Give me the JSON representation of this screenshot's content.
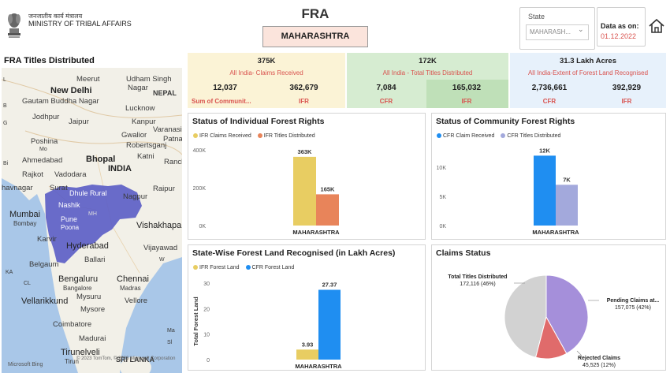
{
  "header": {
    "ministry_hindi": "जनजातीय कार्य मंत्रालय",
    "ministry_english": "MINISTRY OF TRIBAL AFFAIRS",
    "title": "FRA",
    "selected_state_button": "MAHARASHTRA",
    "state_filter_label": "State",
    "state_filter_value": "MAHARASH...",
    "data_as_on_label": "Data as on:",
    "data_as_on_value": "01.12.2022"
  },
  "map": {
    "title": "FRA Titles Distributed",
    "attribution": "Microsoft Bing",
    "copyright": "© 2023 TomTom, © 2023 Microsoft Corporation",
    "labels": {
      "meerut": "Meerut",
      "udhamsingh": "Udham Singh",
      "nagar": "Nagar",
      "newdelhi": "New Delhi",
      "nepal": "NEPAL",
      "gautam": "Gautam Buddha Nagar",
      "lucknow": "Lucknow",
      "jodhpur": "Jodhpur",
      "jaipur": "Jaipur",
      "kanpur": "Kanpur",
      "varanasi": "Varanasi",
      "poshina": "Poshina",
      "patna": "Patna",
      "gwalior": "Gwalior",
      "robertsganj": "Robertsganj",
      "ahmedabad": "Ahmedabad",
      "bhopal": "Bhopal",
      "katni": "Katni",
      "ranchi": "Ranch",
      "rajkot": "Rajkot",
      "vadodara": "Vadodara",
      "india": "INDIA",
      "surat": "Surat",
      "bhavnagar": "havnagar",
      "dhulerural": "Dhule Rural",
      "nagpur": "Nagpur",
      "raipur": "Raipur",
      "nashik": "Nashik",
      "mh": "MH",
      "mumbai": "Mumbai",
      "bombay": "Bombay",
      "pune": "Pune",
      "poona": "Poona",
      "vishakhapa": "Vishakhapa",
      "karvir": "Karvir",
      "hyderabad": "Hyderabad",
      "vijayawad": "Vijayawad",
      "ballari": "Ballari",
      "belgaum": "Belgaum",
      "bengaluru": "Bengaluru",
      "bangalore": "Bangalore",
      "chennai": "Chennai",
      "madras": "Madras",
      "vellarikkund": "Vellarikkund",
      "mysuru": "Mysuru",
      "mysore": "Mysore",
      "vellore": "Vellore",
      "coimbatore": "Coimbatore",
      "madurai": "Madurai",
      "tirunelveli": "Tirunelveli",
      "srilanka": "SRI LANKA",
      "tirun": "Tirun",
      "cl": "CL",
      "ka": "KA",
      "l": "L",
      "b": "B",
      "g": "G",
      "mo": "Mo",
      "bi": "Bi",
      "ma": "Ma",
      "sl": "Sl",
      "w": "W"
    }
  },
  "kpis": [
    {
      "headline": "375K",
      "subtitle": "All India- Claims Received",
      "left_value": "12,037",
      "right_value": "362,679",
      "left_tag": "Sum of Communit...",
      "right_tag": "IFR",
      "background": "#fbf3d6"
    },
    {
      "headline": "172K",
      "subtitle": "All India - Total Titles Distributed",
      "left_value": "7,084",
      "right_value": "165,032",
      "left_tag": "CFR",
      "right_tag": "IFR",
      "background": "#d6ecd1"
    },
    {
      "headline": "31.3 Lakh Acres",
      "subtitle": "All India-Extent of Forest Land Recognised",
      "left_value": "2,736,661",
      "right_value": "392,929",
      "left_tag": "CFR",
      "right_tag": "IFR",
      "background": "#e7f1fb"
    }
  ],
  "panels": {
    "ifr": {
      "title": "Status of Individual Forest Rights",
      "legend": [
        "IFR Claims Received",
        "IFR Titles Distributed"
      ]
    },
    "cfr": {
      "title": "Status of Community Forest Rights",
      "legend": [
        "CFR Claim Received",
        "CFR Titles Distributed"
      ]
    },
    "land": {
      "title": "State-Wise Forest Land Recognised (in Lakh Acres)",
      "legend": [
        "IFR Forest Land",
        "CFR Forest Land"
      ]
    },
    "claims": {
      "title": "Claims Status"
    }
  },
  "colors": {
    "gold": "#e8cd62",
    "orange": "#e8845a",
    "blue": "#1f8ef1",
    "lavender": "#a3a9dc",
    "pie_gray": "#d2d2d2",
    "pie_purple": "#a58fda",
    "pie_red": "#e06b6b",
    "map_region": "#5d5fc6"
  },
  "chart_data": [
    {
      "type": "bar",
      "title": "Status of Individual Forest Rights",
      "categories": [
        "MAHARASHTRA"
      ],
      "series": [
        {
          "name": "IFR Claims Received",
          "values": [
            363000
          ],
          "label": "363K"
        },
        {
          "name": "IFR Titles Distributed",
          "values": [
            165000
          ],
          "label": "165K"
        }
      ],
      "yticks": [
        "0K",
        "200K",
        "400K"
      ],
      "ylim": [
        0,
        400000
      ]
    },
    {
      "type": "bar",
      "title": "Status of Community Forest Rights",
      "categories": [
        "MAHARASHTRA"
      ],
      "series": [
        {
          "name": "CFR Claim Received",
          "values": [
            12000
          ],
          "label": "12K"
        },
        {
          "name": "CFR Titles Distributed",
          "values": [
            7000
          ],
          "label": "7K"
        }
      ],
      "yticks": [
        "0K",
        "5K",
        "10K"
      ],
      "ylim": [
        0,
        13000
      ]
    },
    {
      "type": "bar",
      "title": "State-Wise Forest Land Recognised (in Lakh Acres)",
      "categories": [
        "MAHARASHTRA"
      ],
      "ylabel": "Total Forest Land",
      "series": [
        {
          "name": "IFR Forest Land",
          "values": [
            3.93
          ],
          "label": "3.93"
        },
        {
          "name": "CFR Forest Land",
          "values": [
            27.37
          ],
          "label": "27.37"
        }
      ],
      "yticks": [
        "0",
        "10",
        "20",
        "30"
      ],
      "ylim": [
        0,
        30
      ]
    },
    {
      "type": "pie",
      "title": "Claims Status",
      "slices": [
        {
          "name": "Total Titles Distributed",
          "value": 172116,
          "label_line1": "Total Titles Distributed",
          "label_line2": "172,116 (46%)"
        },
        {
          "name": "Pending Claims at...",
          "value": 157075,
          "label_line1": "Pending Claims at...",
          "label_line2": "157,075 (42%)"
        },
        {
          "name": "Rejected Claims",
          "value": 45525,
          "label_line1": "Rejected Claims",
          "label_line2": "45,525 (12%)"
        }
      ]
    }
  ]
}
